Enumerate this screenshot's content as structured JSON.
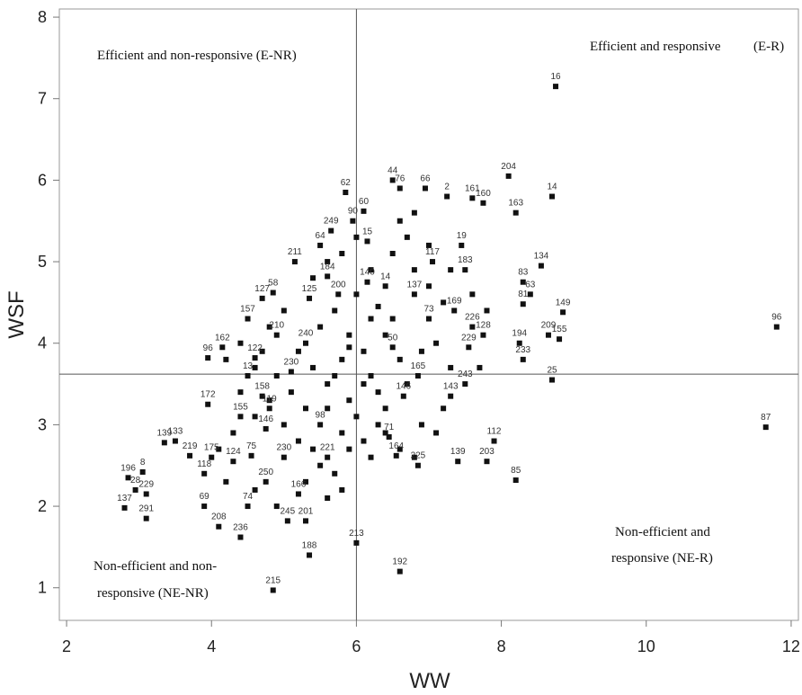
{
  "chart_data": {
    "type": "scatter",
    "title": "",
    "xlabel": "WW",
    "ylabel": "WSF",
    "xlim": [
      1.9,
      12.1
    ],
    "ylim": [
      0.6,
      8.1
    ],
    "xticks": [
      2,
      4,
      6,
      8,
      10,
      12
    ],
    "yticks": [
      1,
      2,
      3,
      4,
      5,
      6,
      7,
      8
    ],
    "grid": false,
    "reference_lines": {
      "x": 6.0,
      "y": 3.62
    },
    "quadrant_labels": {
      "top_left": "Efficient and non-responsive (E-NR)",
      "top_right": "Efficient and responsive",
      "top_right_tag": "(E-R)",
      "bottom_right_line1": "Non-efficient and",
      "bottom_right_line2": "responsive (NE-R)",
      "bottom_left_line1": "Non-efficient and non-",
      "bottom_left_line2": "responsive (NE-NR)"
    },
    "points": [
      {
        "x": 8.75,
        "y": 7.15,
        "label": "16"
      },
      {
        "x": 11.8,
        "y": 4.2,
        "label": "96"
      },
      {
        "x": 11.65,
        "y": 2.97,
        "label": "87"
      },
      {
        "x": 8.7,
        "y": 5.8,
        "label": "14"
      },
      {
        "x": 8.1,
        "y": 6.05,
        "label": "204"
      },
      {
        "x": 8.2,
        "y": 5.6,
        "label": "163"
      },
      {
        "x": 8.55,
        "y": 4.95,
        "label": "134"
      },
      {
        "x": 8.3,
        "y": 4.75,
        "label": "83"
      },
      {
        "x": 8.4,
        "y": 4.6,
        "label": "63"
      },
      {
        "x": 8.85,
        "y": 4.38,
        "label": "149"
      },
      {
        "x": 8.3,
        "y": 4.48,
        "label": "81"
      },
      {
        "x": 8.65,
        "y": 4.1,
        "label": "209"
      },
      {
        "x": 8.8,
        "y": 4.05,
        "label": "155"
      },
      {
        "x": 8.25,
        "y": 4.0,
        "label": "194"
      },
      {
        "x": 8.3,
        "y": 3.8,
        "label": "233"
      },
      {
        "x": 8.7,
        "y": 3.55,
        "label": "25"
      },
      {
        "x": 7.9,
        "y": 2.8,
        "label": "112"
      },
      {
        "x": 7.8,
        "y": 2.55,
        "label": "203"
      },
      {
        "x": 8.2,
        "y": 2.32,
        "label": "85"
      },
      {
        "x": 7.4,
        "y": 2.55,
        "label": "139"
      },
      {
        "x": 7.5,
        "y": 3.5,
        "label": "243"
      },
      {
        "x": 7.3,
        "y": 3.35,
        "label": "143"
      },
      {
        "x": 6.95,
        "y": 5.9,
        "label": "66"
      },
      {
        "x": 6.5,
        "y": 6.0,
        "label": "44"
      },
      {
        "x": 6.6,
        "y": 5.9,
        "label": "76"
      },
      {
        "x": 7.25,
        "y": 5.8,
        "label": "2"
      },
      {
        "x": 7.6,
        "y": 5.78,
        "label": "161"
      },
      {
        "x": 7.75,
        "y": 5.72,
        "label": "160"
      },
      {
        "x": 7.45,
        "y": 5.2,
        "label": "19"
      },
      {
        "x": 7.05,
        "y": 5.0,
        "label": "117"
      },
      {
        "x": 7.5,
        "y": 4.9,
        "label": "183"
      },
      {
        "x": 6.1,
        "y": 5.62,
        "label": "60"
      },
      {
        "x": 5.85,
        "y": 5.85,
        "label": "62"
      },
      {
        "x": 5.95,
        "y": 5.5,
        "label": "90"
      },
      {
        "x": 6.15,
        "y": 5.25,
        "label": "15"
      },
      {
        "x": 5.65,
        "y": 5.38,
        "label": "249"
      },
      {
        "x": 5.5,
        "y": 5.2,
        "label": "64"
      },
      {
        "x": 5.15,
        "y": 5.0,
        "label": "211"
      },
      {
        "x": 5.6,
        "y": 4.82,
        "label": "184"
      },
      {
        "x": 5.75,
        "y": 4.6,
        "label": "200"
      },
      {
        "x": 5.35,
        "y": 4.55,
        "label": "125"
      },
      {
        "x": 4.7,
        "y": 4.55,
        "label": "127"
      },
      {
        "x": 4.85,
        "y": 4.62,
        "label": "58"
      },
      {
        "x": 4.5,
        "y": 4.3,
        "label": "157"
      },
      {
        "x": 4.15,
        "y": 3.95,
        "label": "162"
      },
      {
        "x": 3.95,
        "y": 3.82,
        "label": "96"
      },
      {
        "x": 4.6,
        "y": 3.82,
        "label": "122"
      },
      {
        "x": 4.5,
        "y": 3.6,
        "label": "13"
      },
      {
        "x": 3.95,
        "y": 3.25,
        "label": "172"
      },
      {
        "x": 4.4,
        "y": 3.1,
        "label": "155"
      },
      {
        "x": 3.5,
        "y": 2.8,
        "label": "133"
      },
      {
        "x": 3.35,
        "y": 2.78,
        "label": "139"
      },
      {
        "x": 3.7,
        "y": 2.62,
        "label": "219"
      },
      {
        "x": 4.0,
        "y": 2.6,
        "label": "175"
      },
      {
        "x": 4.3,
        "y": 2.55,
        "label": "124"
      },
      {
        "x": 4.55,
        "y": 2.62,
        "label": "75"
      },
      {
        "x": 3.9,
        "y": 2.4,
        "label": "118"
      },
      {
        "x": 4.75,
        "y": 2.3,
        "label": "250"
      },
      {
        "x": 2.85,
        "y": 2.35,
        "label": "196"
      },
      {
        "x": 3.05,
        "y": 2.42,
        "label": "8"
      },
      {
        "x": 2.95,
        "y": 2.2,
        "label": "28"
      },
      {
        "x": 3.1,
        "y": 2.15,
        "label": "229"
      },
      {
        "x": 2.8,
        "y": 1.98,
        "label": "137"
      },
      {
        "x": 3.1,
        "y": 1.85,
        "label": "291"
      },
      {
        "x": 3.9,
        "y": 2.0,
        "label": "69"
      },
      {
        "x": 4.1,
        "y": 1.75,
        "label": "208"
      },
      {
        "x": 4.5,
        "y": 2.0,
        "label": "74"
      },
      {
        "x": 4.4,
        "y": 1.62,
        "label": "236"
      },
      {
        "x": 5.05,
        "y": 1.82,
        "label": "245"
      },
      {
        "x": 5.3,
        "y": 1.82,
        "label": "201"
      },
      {
        "x": 5.35,
        "y": 1.4,
        "label": "188"
      },
      {
        "x": 5.2,
        "y": 2.15,
        "label": "166"
      },
      {
        "x": 4.85,
        "y": 0.97,
        "label": "215"
      },
      {
        "x": 6.0,
        "y": 1.55,
        "label": "213"
      },
      {
        "x": 6.6,
        "y": 1.2,
        "label": "192"
      },
      {
        "x": 6.85,
        "y": 2.5,
        "label": "225"
      },
      {
        "x": 6.55,
        "y": 2.62,
        "label": "164"
      },
      {
        "x": 6.45,
        "y": 2.85,
        "label": "71"
      },
      {
        "x": 6.65,
        "y": 3.35,
        "label": "146"
      },
      {
        "x": 6.85,
        "y": 3.6,
        "label": "165"
      },
      {
        "x": 7.35,
        "y": 4.4,
        "label": "169"
      },
      {
        "x": 7.6,
        "y": 4.2,
        "label": "226"
      },
      {
        "x": 7.55,
        "y": 3.95,
        "label": "229"
      },
      {
        "x": 7.75,
        "y": 4.1,
        "label": "128"
      },
      {
        "x": 6.5,
        "y": 3.95,
        "label": "50"
      },
      {
        "x": 6.8,
        "y": 4.6,
        "label": "137"
      },
      {
        "x": 7.0,
        "y": 4.3,
        "label": "73"
      },
      {
        "x": 6.4,
        "y": 4.7,
        "label": "14"
      },
      {
        "x": 6.15,
        "y": 4.75,
        "label": "140"
      },
      {
        "x": 5.3,
        "y": 4.0,
        "label": "240"
      },
      {
        "x": 4.9,
        "y": 4.1,
        "label": "210"
      },
      {
        "x": 5.1,
        "y": 3.65,
        "label": "230"
      },
      {
        "x": 5.5,
        "y": 3.0,
        "label": "98"
      },
      {
        "x": 5.0,
        "y": 2.6,
        "label": "230"
      },
      {
        "x": 5.6,
        "y": 2.6,
        "label": "221"
      },
      {
        "x": 4.8,
        "y": 3.2,
        "label": "119"
      },
      {
        "x": 4.75,
        "y": 2.95,
        "label": "146"
      },
      {
        "x": 4.7,
        "y": 3.35,
        "label": "158"
      }
    ],
    "unlabeled_points": [
      [
        5.2,
        3.9
      ],
      [
        5.4,
        3.7
      ],
      [
        5.6,
        3.5
      ],
      [
        5.8,
        3.8
      ],
      [
        6.1,
        3.9
      ],
      [
        6.2,
        3.6
      ],
      [
        6.3,
        3.4
      ],
      [
        6.4,
        3.2
      ],
      [
        6.0,
        3.1
      ],
      [
        5.9,
        3.3
      ],
      [
        5.5,
        4.2
      ],
      [
        5.7,
        4.4
      ],
      [
        5.9,
        4.1
      ],
      [
        6.2,
        4.3
      ],
      [
        6.4,
        4.1
      ],
      [
        6.6,
        3.8
      ],
      [
        6.7,
        3.5
      ],
      [
        6.3,
        3.0
      ],
      [
        6.1,
        2.8
      ],
      [
        5.8,
        2.9
      ],
      [
        5.3,
        3.2
      ],
      [
        5.1,
        3.4
      ],
      [
        4.9,
        3.6
      ],
      [
        4.7,
        3.9
      ],
      [
        4.6,
        3.7
      ],
      [
        4.8,
        3.3
      ],
      [
        5.0,
        3.0
      ],
      [
        5.2,
        2.8
      ],
      [
        5.4,
        2.7
      ],
      [
        5.6,
        3.2
      ],
      [
        6.0,
        4.6
      ],
      [
        6.2,
        4.9
      ],
      [
        6.5,
        5.1
      ],
      [
        6.7,
        5.3
      ],
      [
        6.8,
        4.9
      ],
      [
        7.0,
        4.7
      ],
      [
        7.2,
        4.5
      ],
      [
        7.1,
        4.0
      ],
      [
        6.9,
        3.9
      ],
      [
        7.3,
        3.7
      ],
      [
        5.4,
        4.8
      ],
      [
        5.6,
        5.0
      ],
      [
        5.8,
        5.1
      ],
      [
        6.0,
        5.3
      ],
      [
        6.6,
        5.5
      ],
      [
        6.8,
        5.6
      ],
      [
        7.0,
        5.2
      ],
      [
        7.3,
        4.9
      ],
      [
        7.6,
        4.6
      ],
      [
        7.8,
        4.4
      ],
      [
        7.7,
        3.7
      ],
      [
        7.2,
        3.2
      ],
      [
        6.9,
        3.0
      ],
      [
        7.1,
        2.9
      ],
      [
        6.6,
        2.7
      ],
      [
        6.2,
        2.6
      ],
      [
        6.8,
        2.6
      ],
      [
        5.7,
        2.4
      ],
      [
        5.5,
        2.5
      ],
      [
        5.9,
        2.7
      ],
      [
        5.0,
        4.4
      ],
      [
        4.8,
        4.2
      ],
      [
        4.4,
        4.0
      ],
      [
        4.2,
        3.8
      ],
      [
        4.4,
        3.4
      ],
      [
        4.6,
        3.1
      ],
      [
        4.3,
        2.9
      ],
      [
        4.1,
        2.7
      ],
      [
        4.2,
        2.3
      ],
      [
        4.6,
        2.2
      ],
      [
        4.9,
        2.0
      ],
      [
        5.3,
        2.3
      ],
      [
        5.6,
        2.1
      ],
      [
        5.8,
        2.2
      ],
      [
        6.4,
        2.9
      ],
      [
        6.1,
        3.5
      ],
      [
        5.7,
        3.6
      ],
      [
        5.9,
        3.95
      ],
      [
        6.3,
        4.45
      ],
      [
        6.5,
        4.3
      ]
    ]
  }
}
